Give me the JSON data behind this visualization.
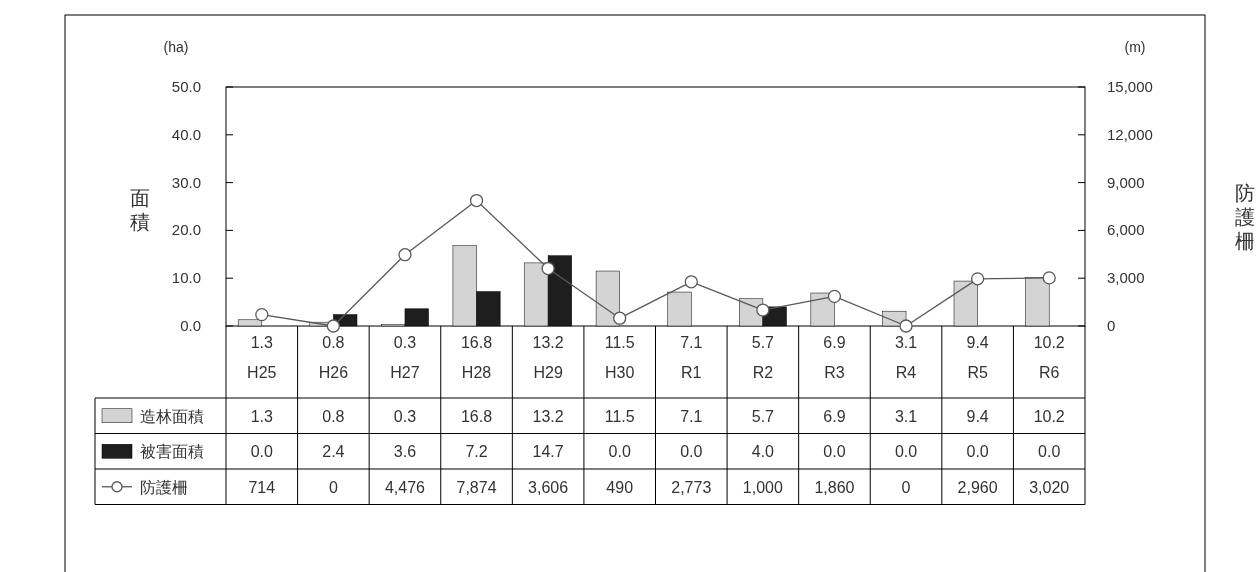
{
  "chart_data": {
    "type": "bar",
    "ylabel": "面積",
    "y2label": "防護柵",
    "categories": [
      "1.3\nH25",
      "0.8\nH26",
      "0.3\nH27",
      "16.8\nH28",
      "13.2\nH29",
      "11.5\nH30",
      "7.1\nR1",
      "5.7\nR2",
      "6.9\nR3",
      "3.1\nR4",
      "9.4\nR5",
      "10.2\nR6"
    ],
    "series": [
      {
        "name": "造林面積",
        "color": "#d4d4d4",
        "values": [
          1.3,
          0.8,
          0.3,
          16.8,
          13.2,
          11.5,
          7.1,
          5.7,
          6.9,
          3.1,
          9.4,
          10.2
        ],
        "value_labels": [
          "1.3",
          "0.8",
          "0.3",
          "16.8",
          "13.2",
          "11.5",
          "7.1",
          "5.7",
          "6.9",
          "3.1",
          "9.4",
          "10.2"
        ]
      },
      {
        "name": "被害面積",
        "color": "#1e1e1e",
        "values": [
          0.0,
          2.4,
          3.6,
          7.2,
          14.7,
          0.0,
          0.0,
          4.0,
          0.0,
          0.0,
          0.0,
          0.0
        ],
        "value_labels": [
          "0.0",
          "2.4",
          "3.6",
          "7.2",
          "14.7",
          "0.0",
          "0.0",
          "4.0",
          "0.0",
          "0.0",
          "0.0",
          "0.0"
        ]
      },
      {
        "name": "防護柵",
        "type": "line",
        "axis": "y2",
        "color": "#595959",
        "marker": "circle",
        "values": [
          714,
          0,
          4476,
          7874,
          3606,
          490,
          2773,
          1000,
          1860,
          0,
          2960,
          3020
        ],
        "value_labels": [
          "714",
          "0",
          "4,476",
          "7,874",
          "3,606",
          "490",
          "2,773",
          "1,000",
          "1,860",
          "0",
          "2,960",
          "3,020"
        ]
      }
    ],
    "ylim": [
      0,
      50
    ],
    "yticks": [
      {
        "value": 0,
        "label": "0.0"
      },
      {
        "value": 10,
        "label": "10.0"
      },
      {
        "value": 20,
        "label": "20.0"
      },
      {
        "value": 30,
        "label": "30.0"
      },
      {
        "value": 40,
        "label": "40.0"
      },
      {
        "value": 50,
        "label": "50.0"
      }
    ],
    "y2lim": [
      0,
      15000
    ],
    "y2ticks": [
      0,
      {
        "value": 3000,
        "label": "3,000"
      },
      {
        "value": 6000,
        "label": "6,000"
      },
      {
        "value": 9000,
        "label": "9,000"
      },
      {
        "value": 12000,
        "label": "12,000"
      },
      {
        "value": 15000,
        "label": "15,000"
      }
    ],
    "legend": "bottom",
    "grid": false,
    "annotations": [
      "(ha)",
      "(m)"
    ]
  }
}
